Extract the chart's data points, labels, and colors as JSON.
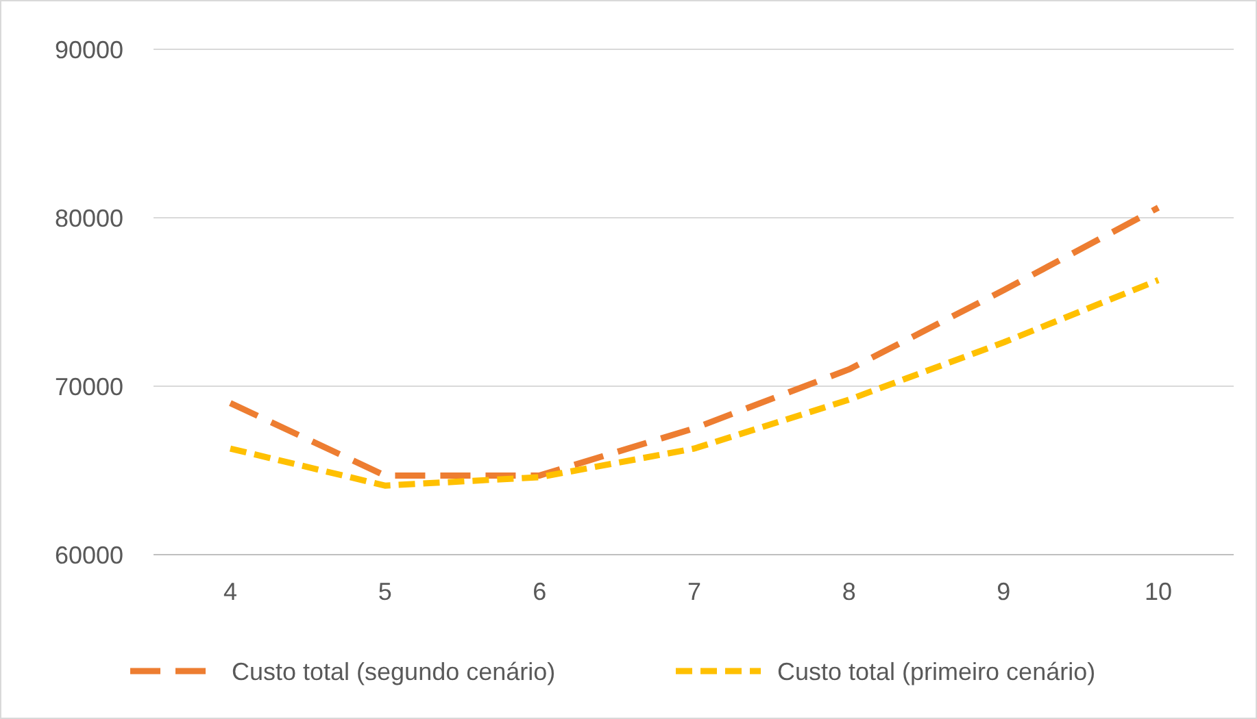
{
  "chart_data": {
    "type": "line",
    "categories": [
      "4",
      "5",
      "6",
      "7",
      "8",
      "9",
      "10"
    ],
    "series": [
      {
        "name": "Custo total (segundo cenário)",
        "color": "#ed7d31",
        "values": [
          69000,
          64700,
          64700,
          67500,
          71000,
          75700,
          80600
        ]
      },
      {
        "name": "Custo total (primeiro cenário)",
        "color": "#ffc000",
        "values": [
          66300,
          64100,
          64600,
          66300,
          69200,
          72600,
          76300
        ]
      }
    ],
    "ylim": [
      60000,
      90000
    ],
    "yticks": [
      60000,
      70000,
      80000,
      90000
    ],
    "grid": "y",
    "legend": "bottom",
    "line_style": "dashed"
  }
}
